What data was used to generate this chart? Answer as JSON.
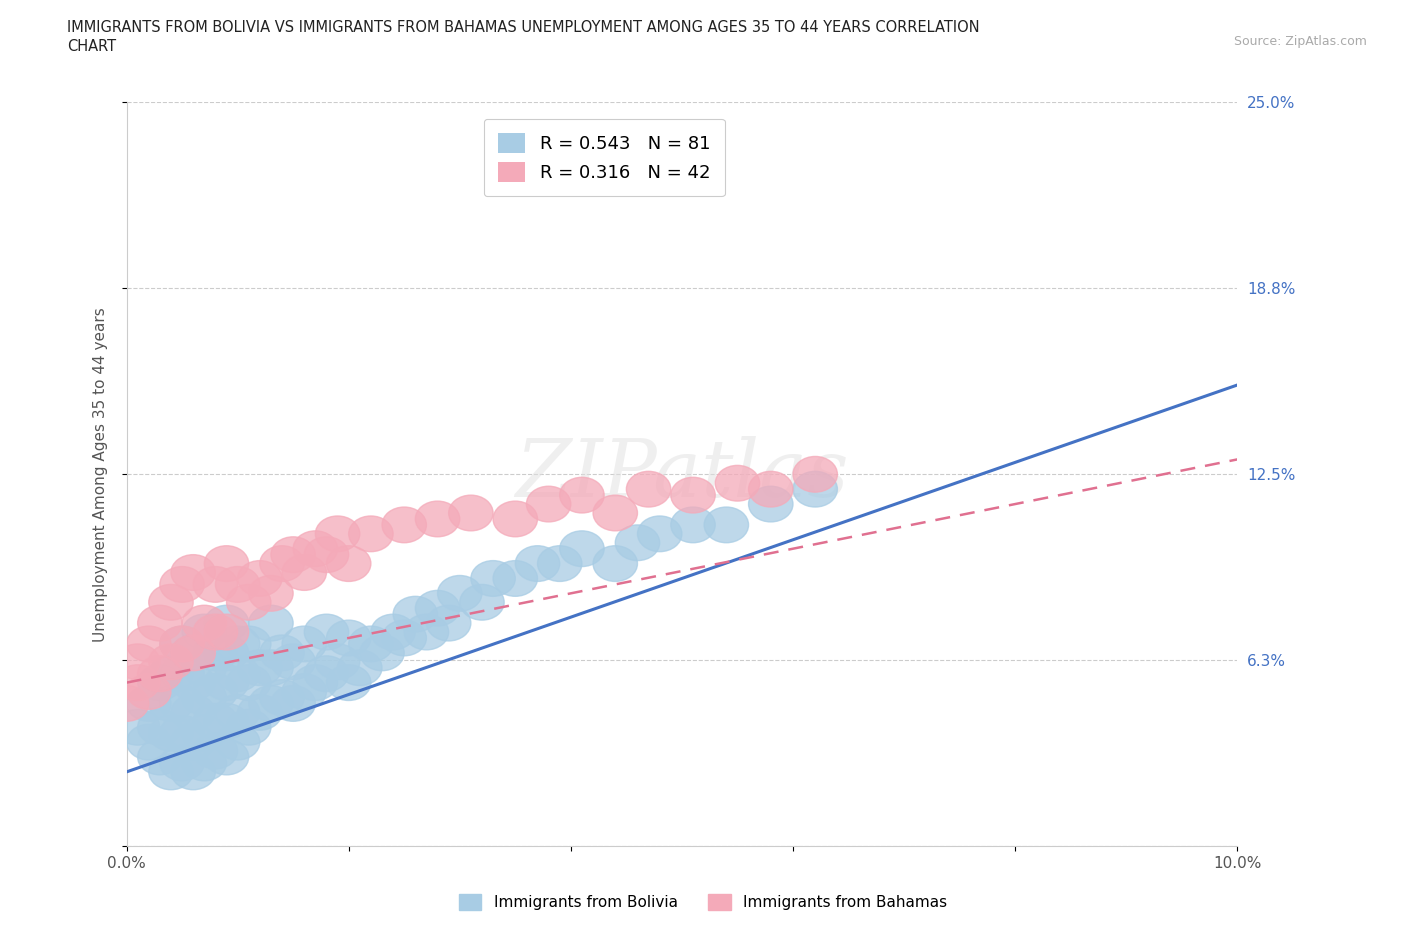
{
  "title_line1": "IMMIGRANTS FROM BOLIVIA VS IMMIGRANTS FROM BAHAMAS UNEMPLOYMENT AMONG AGES 35 TO 44 YEARS CORRELATION",
  "title_line2": "CHART",
  "source": "Source: ZipAtlas.com",
  "ylabel": "Unemployment Among Ages 35 to 44 years",
  "xlim": [
    0.0,
    0.1
  ],
  "ylim": [
    0.0,
    0.25
  ],
  "xtick_vals": [
    0.0,
    0.02,
    0.04,
    0.06,
    0.08,
    0.1
  ],
  "xticklabels": [
    "0.0%",
    "",
    "",
    "",
    "",
    "10.0%"
  ],
  "ytick_vals": [
    0.0,
    0.0625,
    0.125,
    0.1875,
    0.25
  ],
  "yticklabels": [
    "",
    "6.3%",
    "12.5%",
    "18.8%",
    "25.0%"
  ],
  "bolivia_color": "#a8cce4",
  "bahamas_color": "#f4aab9",
  "bolivia_line_color": "#4472c4",
  "bahamas_line_color": "#e07090",
  "legend_R_bolivia": "R = 0.543",
  "legend_N_bolivia": "N = 81",
  "legend_R_bahamas": "R = 0.316",
  "legend_N_bahamas": "N = 42",
  "watermark": "ZIPatlas",
  "bolivia_x": [
    0.001,
    0.002,
    0.002,
    0.003,
    0.003,
    0.003,
    0.004,
    0.004,
    0.004,
    0.004,
    0.005,
    0.005,
    0.005,
    0.005,
    0.005,
    0.006,
    0.006,
    0.006,
    0.006,
    0.006,
    0.007,
    0.007,
    0.007,
    0.007,
    0.007,
    0.008,
    0.008,
    0.008,
    0.008,
    0.009,
    0.009,
    0.009,
    0.009,
    0.009,
    0.01,
    0.01,
    0.01,
    0.01,
    0.011,
    0.011,
    0.011,
    0.012,
    0.012,
    0.013,
    0.013,
    0.013,
    0.014,
    0.014,
    0.015,
    0.015,
    0.016,
    0.016,
    0.017,
    0.018,
    0.018,
    0.019,
    0.02,
    0.02,
    0.021,
    0.022,
    0.023,
    0.024,
    0.025,
    0.026,
    0.027,
    0.028,
    0.029,
    0.03,
    0.032,
    0.033,
    0.035,
    0.037,
    0.039,
    0.041,
    0.044,
    0.046,
    0.048,
    0.051,
    0.054,
    0.058,
    0.062
  ],
  "bolivia_y": [
    0.04,
    0.035,
    0.048,
    0.03,
    0.04,
    0.055,
    0.025,
    0.038,
    0.048,
    0.058,
    0.028,
    0.038,
    0.048,
    0.058,
    0.068,
    0.025,
    0.035,
    0.045,
    0.055,
    0.065,
    0.028,
    0.038,
    0.05,
    0.06,
    0.072,
    0.032,
    0.042,
    0.052,
    0.065,
    0.03,
    0.042,
    0.055,
    0.065,
    0.075,
    0.035,
    0.045,
    0.058,
    0.068,
    0.04,
    0.055,
    0.068,
    0.045,
    0.06,
    0.048,
    0.06,
    0.075,
    0.05,
    0.065,
    0.048,
    0.062,
    0.052,
    0.068,
    0.055,
    0.058,
    0.072,
    0.062,
    0.055,
    0.07,
    0.06,
    0.068,
    0.065,
    0.072,
    0.07,
    0.078,
    0.072,
    0.08,
    0.075,
    0.085,
    0.082,
    0.09,
    0.09,
    0.095,
    0.095,
    0.1,
    0.095,
    0.102,
    0.105,
    0.108,
    0.108,
    0.115,
    0.12
  ],
  "bahamas_x": [
    0.0,
    0.001,
    0.001,
    0.002,
    0.002,
    0.003,
    0.003,
    0.004,
    0.004,
    0.005,
    0.005,
    0.006,
    0.006,
    0.007,
    0.008,
    0.008,
    0.009,
    0.009,
    0.01,
    0.011,
    0.012,
    0.013,
    0.014,
    0.015,
    0.016,
    0.017,
    0.018,
    0.019,
    0.02,
    0.022,
    0.025,
    0.028,
    0.031,
    0.035,
    0.038,
    0.041,
    0.044,
    0.047,
    0.051,
    0.055,
    0.058,
    0.062
  ],
  "bahamas_y": [
    0.048,
    0.055,
    0.062,
    0.052,
    0.068,
    0.058,
    0.075,
    0.062,
    0.082,
    0.068,
    0.088,
    0.065,
    0.092,
    0.075,
    0.072,
    0.088,
    0.072,
    0.095,
    0.088,
    0.082,
    0.09,
    0.085,
    0.095,
    0.098,
    0.092,
    0.1,
    0.098,
    0.105,
    0.095,
    0.105,
    0.108,
    0.11,
    0.112,
    0.11,
    0.115,
    0.118,
    0.112,
    0.12,
    0.118,
    0.122,
    0.12,
    0.125
  ],
  "bolivia_trend_x0": 0.0,
  "bolivia_trend_y0": 0.025,
  "bolivia_trend_x1": 0.1,
  "bolivia_trend_y1": 0.155,
  "bahamas_trend_x0": 0.0,
  "bahamas_trend_y0": 0.055,
  "bahamas_trend_x1": 0.1,
  "bahamas_trend_y1": 0.13
}
